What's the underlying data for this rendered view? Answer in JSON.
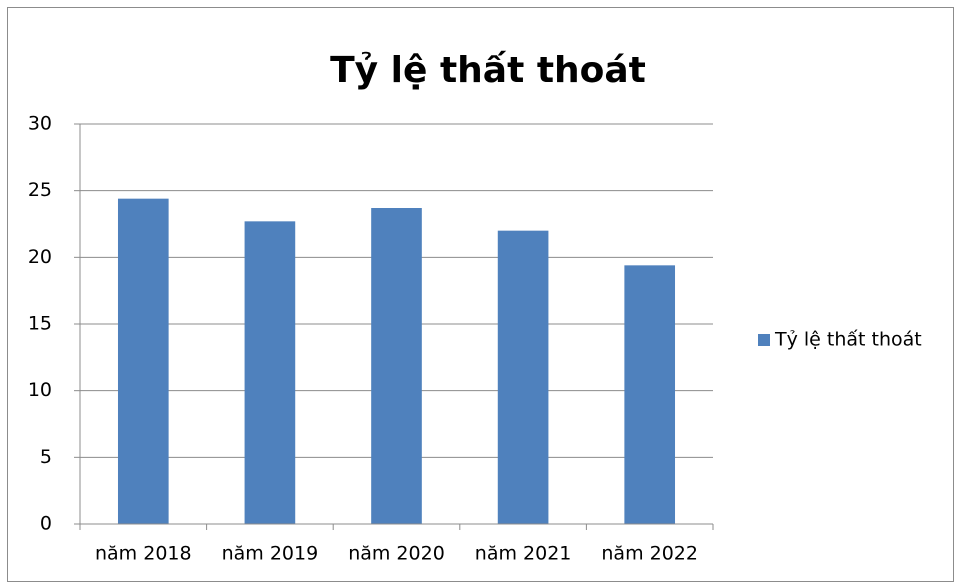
{
  "chart_data": {
    "type": "bar",
    "title": "Tỷ lệ thất thoát",
    "categories": [
      "năm 2018",
      "năm 2019",
      "năm 2020",
      "năm 2021",
      "năm 2022"
    ],
    "series": [
      {
        "name": "Tỷ lệ thất thoát",
        "color": "#4f81bd",
        "values": [
          24.4,
          22.7,
          23.7,
          22.0,
          19.4
        ]
      }
    ],
    "ylim": [
      0,
      30
    ],
    "yticks": [
      0,
      5,
      10,
      15,
      20,
      25,
      30
    ],
    "grid": true,
    "legend": "right"
  }
}
